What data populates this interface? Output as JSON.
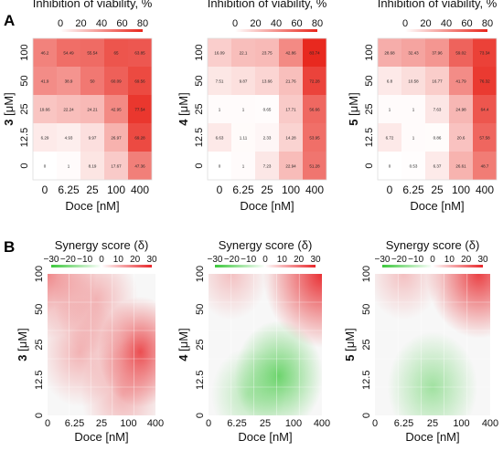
{
  "panels": {
    "a": "A",
    "b": "B"
  },
  "colors": {
    "heat_low": "#ffffff",
    "heat_high": "#e8261c",
    "synergy_pos": "#e8262a",
    "synergy_neg": "#3cc83c"
  },
  "chart_data": [
    {
      "type": "heatmap",
      "panel": "A",
      "compound": "3",
      "title": "Inhibition of viability, %",
      "colorbar_ticks": [
        "0",
        "20",
        "40",
        "60",
        "80"
      ],
      "xlabel": "Doce [nM]",
      "ylabel": "[μM]",
      "x_ticks": [
        "0",
        "6.25",
        "25",
        "100",
        "400"
      ],
      "y_ticks": [
        "0",
        "12.5",
        "25",
        "50",
        "100"
      ],
      "values": [
        [
          "0",
          "1",
          "8.19",
          "17.67",
          "47.36"
        ],
        [
          "6.29",
          "4.93",
          "9.97",
          "26.97",
          "69.28"
        ],
        [
          "19.66",
          "22.24",
          "24.21",
          "42.95",
          "77.54"
        ],
        [
          "41.9",
          "38.9",
          "50",
          "60.09",
          "69.56"
        ],
        [
          "46.2",
          "54.49",
          "55.54",
          "65",
          "63.85"
        ]
      ]
    },
    {
      "type": "heatmap",
      "panel": "A",
      "compound": "4",
      "title": "Inhibition of viability, %",
      "colorbar_ticks": [
        "0",
        "20",
        "40",
        "60",
        "80"
      ],
      "xlabel": "Doce [nM]",
      "ylabel": "[μM]",
      "x_ticks": [
        "0",
        "6.25",
        "25",
        "100",
        "400"
      ],
      "y_ticks": [
        "0",
        "12.5",
        "25",
        "50",
        "100"
      ],
      "values": [
        [
          "0",
          "1",
          "7.23",
          "22.94",
          "51.28"
        ],
        [
          "6.63",
          "1.11",
          "2.33",
          "14.28",
          "53.95"
        ],
        [
          "1",
          "1",
          "0.65",
          "17.71",
          "56.66"
        ],
        [
          "7.51",
          "9.87",
          "13.66",
          "21.76",
          "72.28"
        ],
        [
          "16.09",
          "22.1",
          "23.75",
          "42.86",
          "83.74"
        ]
      ]
    },
    {
      "type": "heatmap",
      "panel": "A",
      "compound": "5",
      "title": "Inhibition of viability, %",
      "colorbar_ticks": [
        "0",
        "20",
        "40",
        "60",
        "80"
      ],
      "xlabel": "Doce [nM]",
      "ylabel": "[μM]",
      "x_ticks": [
        "0",
        "6.25",
        "25",
        "100",
        "400"
      ],
      "y_ticks": [
        "0",
        "12.5",
        "25",
        "50",
        "100"
      ],
      "values": [
        [
          "0",
          "0.53",
          "6.37",
          "26.61",
          "48.7"
        ],
        [
          "6.72",
          "1",
          "0.86",
          "20.6",
          "57.58"
        ],
        [
          "1",
          "1",
          "7.63",
          "24.98",
          "64.4"
        ],
        [
          "6.8",
          "10.58",
          "16.77",
          "41.79",
          "76.32"
        ],
        [
          "28.68",
          "32.43",
          "37.96",
          "59.02",
          "73.34"
        ]
      ]
    },
    {
      "type": "heatmap",
      "panel": "B",
      "compound": "3",
      "title": "Synergy score (δ)",
      "colorbar_ticks": [
        "−30",
        "−20",
        "−10",
        "0",
        "10",
        "20",
        "30"
      ],
      "xlabel": "Doce [nM]",
      "ylabel": "[μM]",
      "x_ticks": [
        "0",
        "6.25",
        "25",
        "100",
        "400"
      ],
      "y_ticks": [
        "0",
        "12.5",
        "25",
        "50",
        "100"
      ],
      "blobs": [
        {
          "x": 0.0,
          "y": 1.0,
          "v": 16,
          "r": 0.35
        },
        {
          "x": 0.45,
          "y": 0.82,
          "v": 10,
          "r": 0.3
        },
        {
          "x": 0.86,
          "y": 0.45,
          "v": 24,
          "r": 0.3
        },
        {
          "x": 0.7,
          "y": 0.15,
          "v": 10,
          "r": 0.3
        },
        {
          "x": 0.3,
          "y": 0.45,
          "v": 10,
          "r": 0.3
        }
      ]
    },
    {
      "type": "heatmap",
      "panel": "B",
      "compound": "4",
      "title": "Synergy score (δ)",
      "colorbar_ticks": [
        "−30",
        "−20",
        "−10",
        "0",
        "10",
        "20",
        "30"
      ],
      "xlabel": "Doce [nM]",
      "ylabel": "[μM]",
      "x_ticks": [
        "0",
        "6.25",
        "25",
        "100",
        "400"
      ],
      "y_ticks": [
        "0",
        "12.5",
        "25",
        "50",
        "100"
      ],
      "blobs": [
        {
          "x": 1.0,
          "y": 1.0,
          "v": 30,
          "r": 0.4
        },
        {
          "x": 0.2,
          "y": 1.0,
          "v": 8,
          "r": 0.25
        },
        {
          "x": 0.62,
          "y": 0.28,
          "v": -22,
          "r": 0.3
        },
        {
          "x": 0.35,
          "y": 0.15,
          "v": -10,
          "r": 0.25
        }
      ]
    },
    {
      "type": "heatmap",
      "panel": "B",
      "compound": "5",
      "title": "Synergy score (δ)",
      "colorbar_ticks": [
        "−30",
        "−20",
        "−10",
        "0",
        "10",
        "20",
        "30"
      ],
      "xlabel": "Doce [nM]",
      "ylabel": "[μM]",
      "x_ticks": [
        "0",
        "6.25",
        "25",
        "100",
        "400"
      ],
      "y_ticks": [
        "0",
        "12.5",
        "25",
        "50",
        "100"
      ],
      "blobs": [
        {
          "x": 0.9,
          "y": 1.0,
          "v": 26,
          "r": 0.35
        },
        {
          "x": 0.25,
          "y": 1.0,
          "v": 8,
          "r": 0.25
        },
        {
          "x": 0.5,
          "y": 0.2,
          "v": -14,
          "r": 0.3
        }
      ]
    }
  ]
}
